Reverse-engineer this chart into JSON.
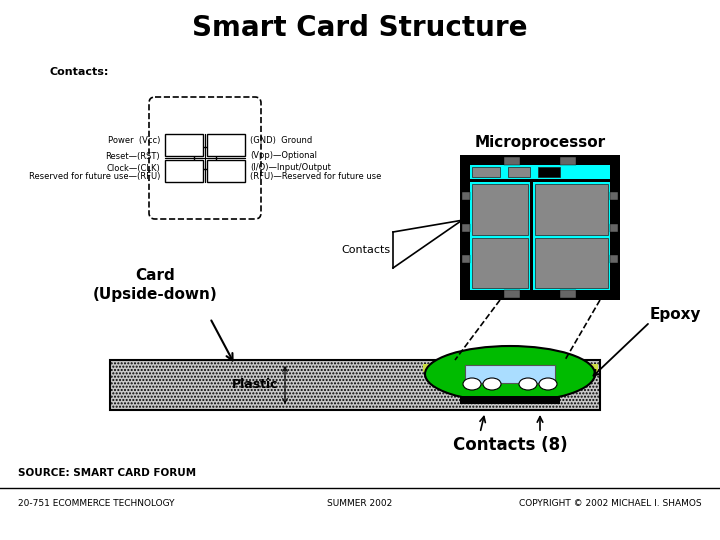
{
  "title": "Smart Card Structure",
  "title_fontsize": 20,
  "title_fontweight": "bold",
  "bg_color": "#ffffff",
  "footer_left": "20-751 ECOMMERCE TECHNOLOGY",
  "footer_center": "SUMMER 2002",
  "footer_right": "COPYRIGHT © 2002 MICHAEL I. SHAMOS",
  "source_text": "SOURCE: SMART CARD FORUM",
  "contacts_label": "Contacts:",
  "left_labels": [
    "Power  (Vcc)",
    "Reset—(RST)",
    "Clock—(CLK)",
    "Reserved for future use—(RFU)"
  ],
  "right_labels": [
    "(GND)  Ground",
    "(Vpp)—Optional",
    "(I/O)—Input/Output",
    "(RFU)—Reserved for future use"
  ],
  "microprocessor_label": "Microprocessor",
  "contacts_arrow_label": "Contacts",
  "card_label": "Card\n(Upside-down)",
  "epoxy_label": "Epoxy",
  "contacts8_label": "Contacts (8)",
  "plastic_label": "Plastic",
  "cyan_color": "#00ffff",
  "gray_block": "#888888",
  "light_gray": "#c8c8c8",
  "green_dark": "#008800",
  "green_mid": "#00bb00",
  "green_light": "#ccee88",
  "light_blue": "#aaddff",
  "black": "#000000",
  "white": "#ffffff"
}
